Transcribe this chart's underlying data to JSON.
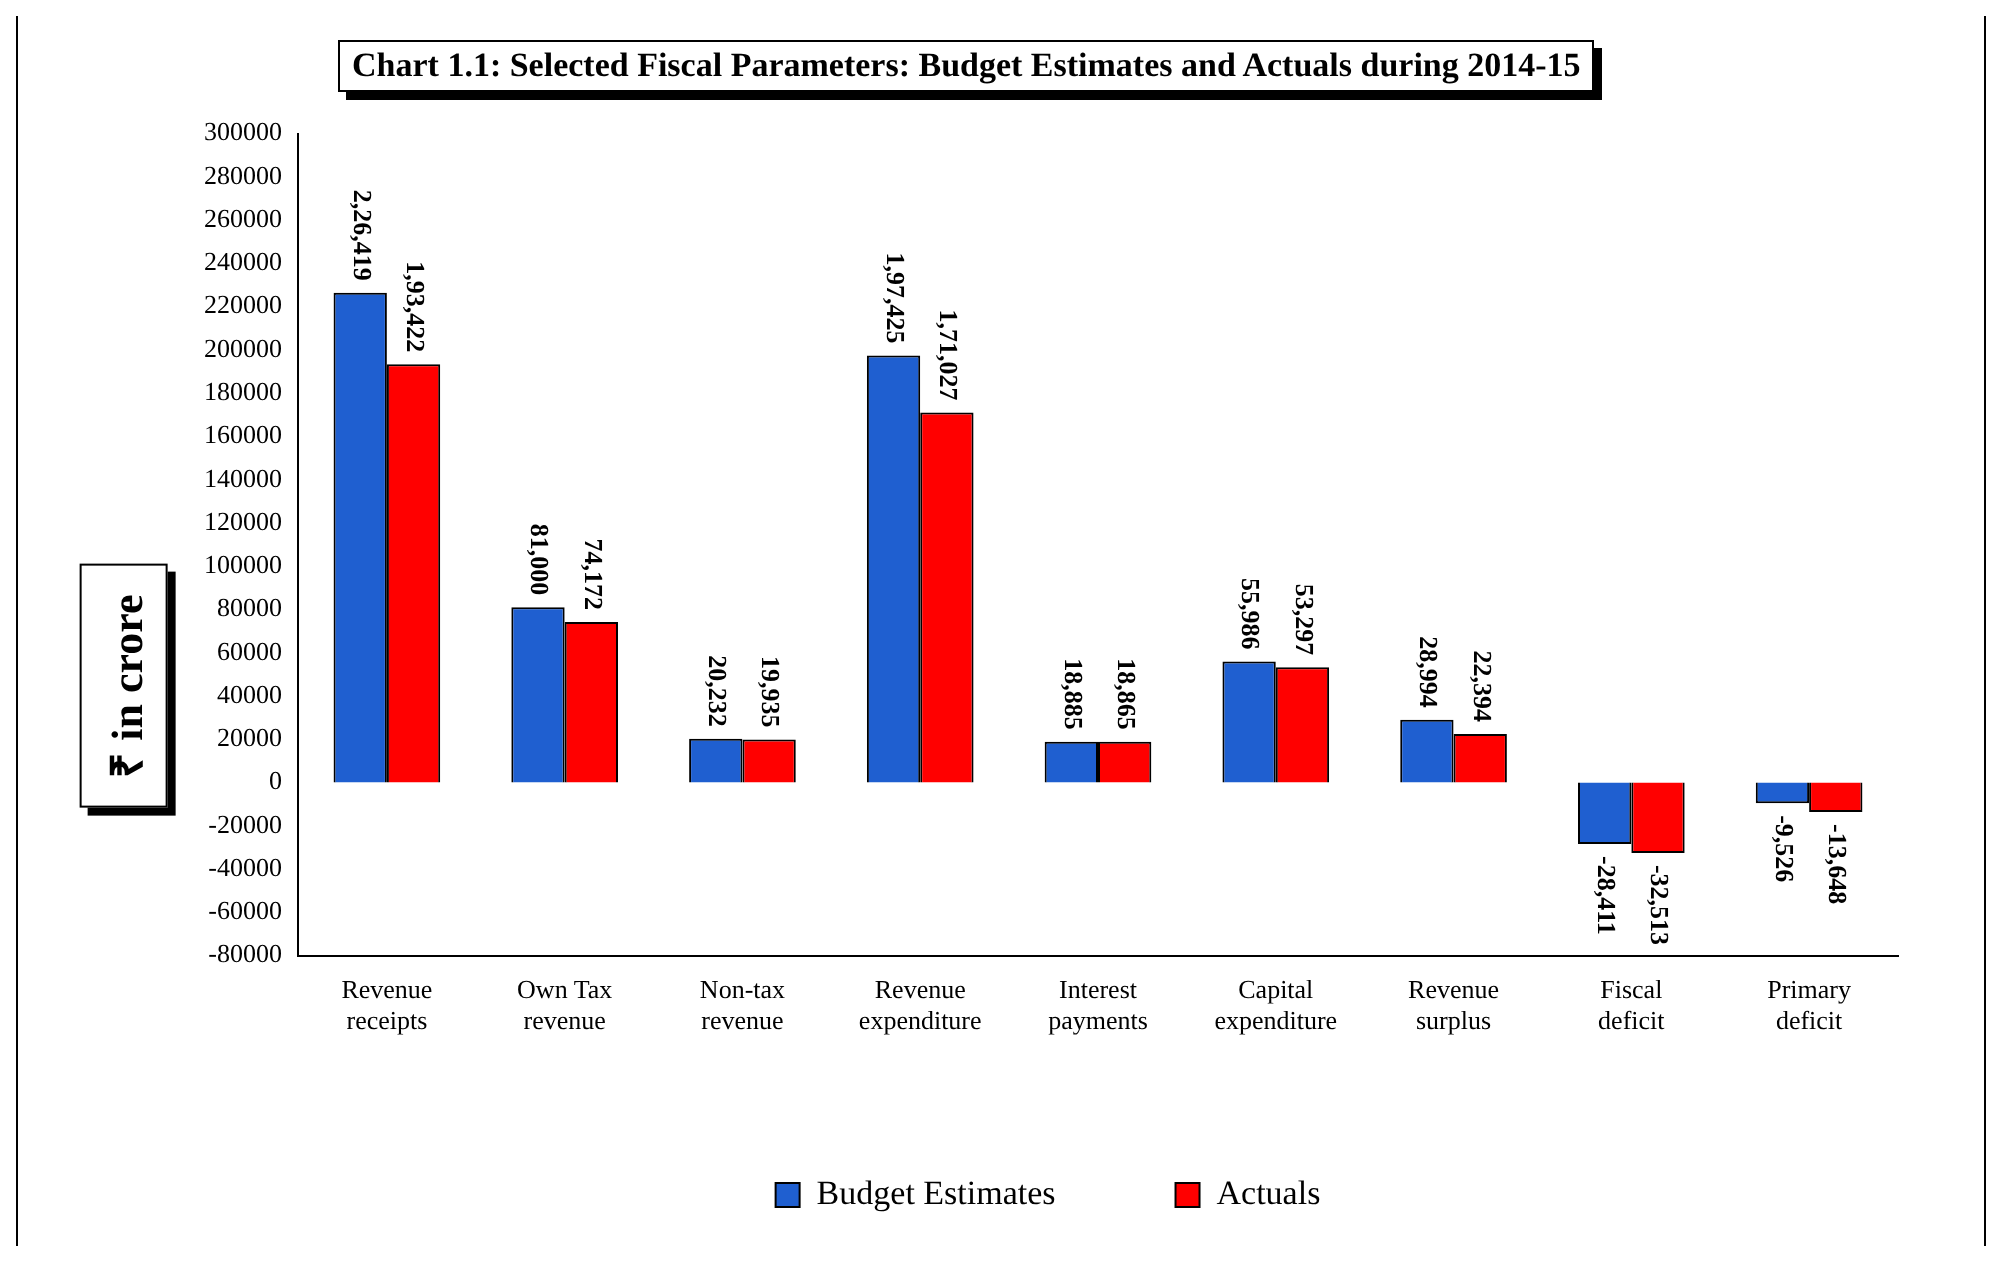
{
  "chart_data": {
    "type": "bar",
    "title": "Chart 1.1: Selected Fiscal Parameters: Budget Estimates and Actuals during 2014-15",
    "ylabel": "₹ in crore",
    "categories": [
      "Revenue receipts",
      "Own Tax revenue",
      "Non-tax revenue",
      "Revenue expenditure",
      "Interest payments",
      "Capital expenditure",
      "Revenue surplus",
      "Fiscal deficit",
      "Primary deficit"
    ],
    "series": [
      {
        "name": "Budget Estimates",
        "color": "#1f5fd0",
        "values": [
          226419,
          81000,
          20232,
          197425,
          18885,
          55986,
          28994,
          -28411,
          -9526
        ],
        "value_labels": [
          "2,26,419",
          "81,000",
          "20,232",
          "1,97,425",
          "18,885",
          "55,986",
          "28,994",
          "-28,411",
          "-9,526"
        ]
      },
      {
        "name": "Actuals",
        "color": "#ff0000",
        "values": [
          193422,
          74172,
          19935,
          171027,
          18865,
          53297,
          22394,
          -32513,
          -13648
        ],
        "value_labels": [
          "1,93,422",
          "74,172",
          "19,935",
          "1,71,027",
          "18,865",
          "53,297",
          "22,394",
          "-32,513",
          "-13,648"
        ]
      }
    ],
    "ylim": [
      -80000,
      300000
    ],
    "yticks": [
      -80000,
      -60000,
      -40000,
      -20000,
      0,
      20000,
      40000,
      60000,
      80000,
      100000,
      120000,
      140000,
      160000,
      180000,
      200000,
      220000,
      240000,
      260000,
      280000,
      300000
    ],
    "grid": false,
    "legend": "bottom"
  }
}
